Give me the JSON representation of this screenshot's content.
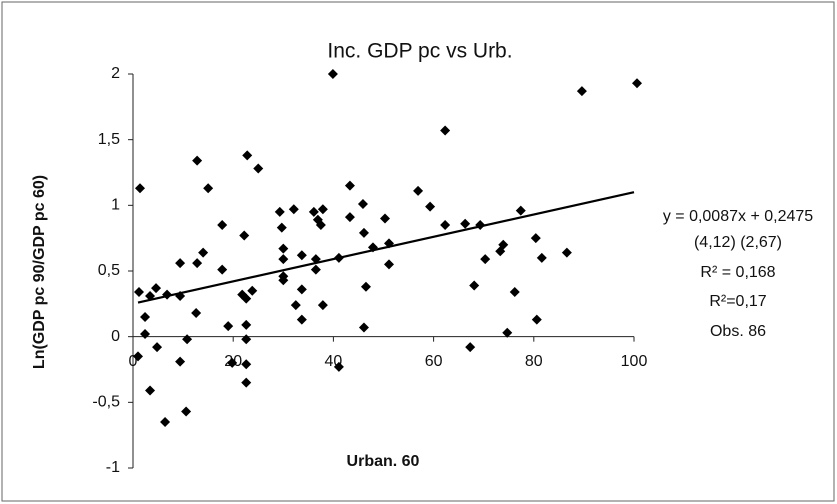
{
  "chart_data": {
    "type": "scatter",
    "title": "Inc. GDP pc vs Urb.",
    "x_label": "Urban. 60",
    "y_label": "Ln(GDP pc 90/GDP pc 60)",
    "series": [
      {
        "name": "Observations",
        "color": "#000000",
        "x": [
          1.4,
          1.2,
          1,
          2.4,
          2.4,
          3.4,
          4.6,
          4.8,
          3.4,
          6.4,
          6.8,
          9.4,
          9.4,
          9.4,
          10.6,
          10.8,
          12.6,
          12.8,
          12.8,
          14,
          15,
          17.8,
          17.8,
          19,
          19.8,
          22.2,
          21.8,
          22.6,
          22.8,
          22.6,
          22.6,
          22.6,
          22.6,
          23.8,
          25,
          29.3,
          29.7,
          30,
          30,
          30,
          30,
          32.1,
          32.5,
          33.7,
          33.7,
          33.7,
          36.1,
          36.5,
          36.5,
          36.9,
          37.5,
          37.9,
          37.9,
          39.9,
          41.1,
          41.1,
          43.3,
          43.3,
          45.9,
          46.1,
          46.5,
          46.1,
          47.9,
          50.3,
          51.1,
          51.1,
          56.9,
          59.3,
          62.3,
          62.3,
          66.3,
          67.3,
          68.1,
          69.3,
          70.3,
          73.3,
          73.9,
          74.7,
          76.2,
          77.4,
          80.4,
          80.6,
          81.6,
          86.6,
          89.6,
          100.6
        ],
        "values": [
          1.13,
          0.34,
          -0.15,
          0.15,
          0.02,
          0.31,
          0.37,
          -0.08,
          -0.41,
          -0.65,
          0.32,
          0.56,
          0.31,
          -0.19,
          -0.57,
          -0.02,
          0.18,
          1.34,
          0.56,
          0.64,
          1.13,
          0.85,
          0.51,
          0.08,
          -0.2,
          0.77,
          0.32,
          0.29,
          1.38,
          0.09,
          -0.02,
          -0.21,
          -0.35,
          0.35,
          1.28,
          0.95,
          0.83,
          0.67,
          0.59,
          0.46,
          0.43,
          0.97,
          0.24,
          0.62,
          0.36,
          0.13,
          0.95,
          0.59,
          0.51,
          0.89,
          0.85,
          0.97,
          0.24,
          2.0,
          0.6,
          -0.23,
          1.15,
          0.91,
          1.01,
          0.79,
          0.38,
          0.07,
          0.68,
          0.9,
          0.71,
          0.55,
          1.11,
          0.99,
          1.57,
          0.85,
          0.86,
          -0.08,
          0.39,
          0.85,
          0.59,
          0.65,
          0.7,
          0.03,
          0.34,
          0.96,
          0.75,
          0.13,
          0.6,
          0.64,
          1.87,
          1.93
        ]
      }
    ],
    "trendline": {
      "color": "#000000",
      "x": [
        1,
        100
      ],
      "values": [
        0.26,
        1.1
      ]
    },
    "annotations": [
      "y = 0,0087x + 0,2475",
      "(4,12)   (2,67)",
      "R² = 0,168",
      "R²=0,17",
      "Obs. 86"
    ],
    "xlim": [
      0,
      100
    ],
    "xticks": [
      0,
      20,
      40,
      60,
      80,
      100
    ],
    "ylim": [
      -1,
      2
    ],
    "yticks": [
      -1,
      {
        "value": -0.5,
        "label": "-0,5"
      },
      0,
      {
        "value": 0.5,
        "label": "0,5"
      },
      1,
      {
        "value": 1.5,
        "label": "1,5"
      },
      2
    ]
  }
}
